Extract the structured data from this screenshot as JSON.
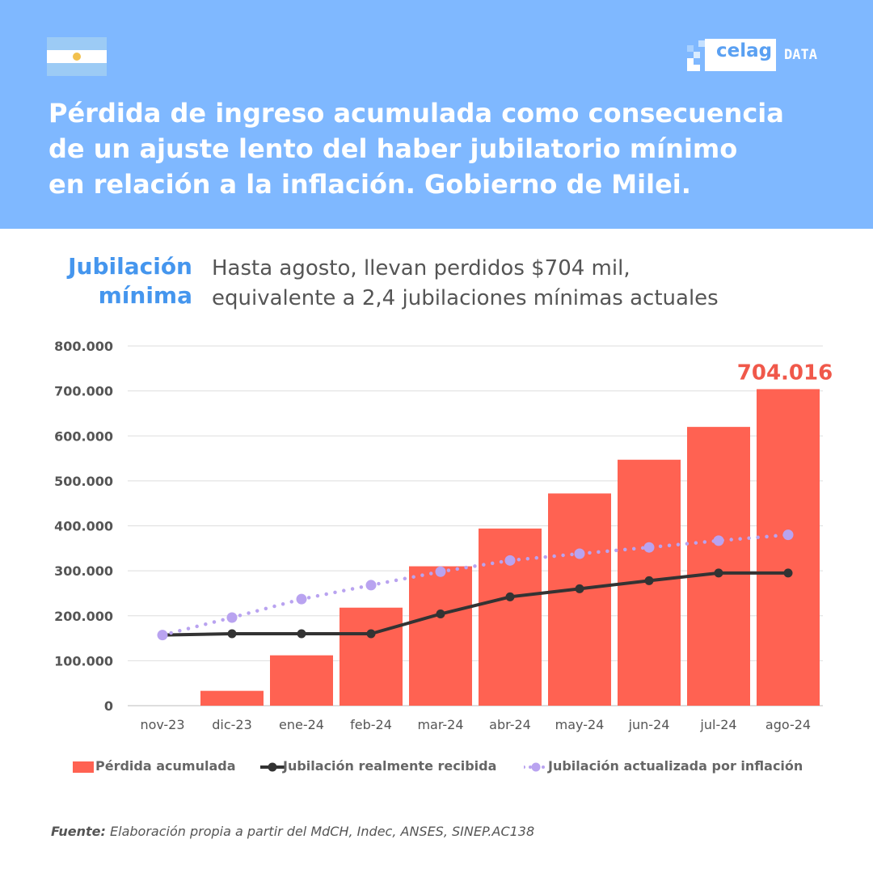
{
  "header": {
    "title_lines": [
      "Pérdida de ingreso acumulada como consecuencia",
      "de un ajuste lento del haber jubilatorio mínimo",
      "en relación a la inflación. Gobierno de Milei."
    ],
    "logo": {
      "brand": "celag",
      "suffix": "DATA"
    },
    "flag": "argentina-flag"
  },
  "label": {
    "line1": "Jubilación",
    "line2": "mínima"
  },
  "subtitle": {
    "line1": "Hasta agosto, llevan perdidos $704 mil,",
    "line2": "equivalente a 2,4 jubilaciones mínimas actuales"
  },
  "colors": {
    "header_bg": "#7fb8ff",
    "bar": "#ff6252",
    "received_line": "#333333",
    "inflation_line": "#b9a3f0",
    "highlight": "#f0584a",
    "label_blue": "#4596ee"
  },
  "chart_data": {
    "type": "bar",
    "categories": [
      "nov-23",
      "dic-23",
      "ene-24",
      "feb-24",
      "mar-24",
      "abr-24",
      "may-24",
      "jun-24",
      "jul-24",
      "ago-24"
    ],
    "ylim": [
      0,
      800000
    ],
    "yticks": [
      0,
      100000,
      200000,
      300000,
      400000,
      500000,
      600000,
      700000,
      800000
    ],
    "ytick_labels": [
      "0",
      "100.000",
      "200.000",
      "300.000",
      "400.000",
      "500.000",
      "600.000",
      "700.000",
      "800.000"
    ],
    "grid": true,
    "legend_position": "bottom",
    "series": [
      {
        "name": "Pérdida acumulada",
        "kind": "bar",
        "values": [
          0,
          33000,
          112000,
          218000,
          310000,
          394000,
          472000,
          547000,
          620000,
          704016
        ]
      },
      {
        "name": "Jubilación realmente recibida",
        "kind": "line",
        "values": [
          157000,
          160000,
          160000,
          160000,
          204000,
          242000,
          260000,
          278000,
          295000,
          295000
        ]
      },
      {
        "name": "Jubilación actualizada por inflación",
        "kind": "dotted-line",
        "values": [
          157000,
          196000,
          237000,
          268000,
          298000,
          323000,
          338000,
          352000,
          367000,
          380000
        ]
      }
    ],
    "annotations": [
      {
        "category": "ago-24",
        "text": "704.016"
      }
    ]
  },
  "source": {
    "label": "Fuente:",
    "text": "Elaboración propia a partir del MdCH, Indec, ANSES, SINEP.AC138"
  }
}
